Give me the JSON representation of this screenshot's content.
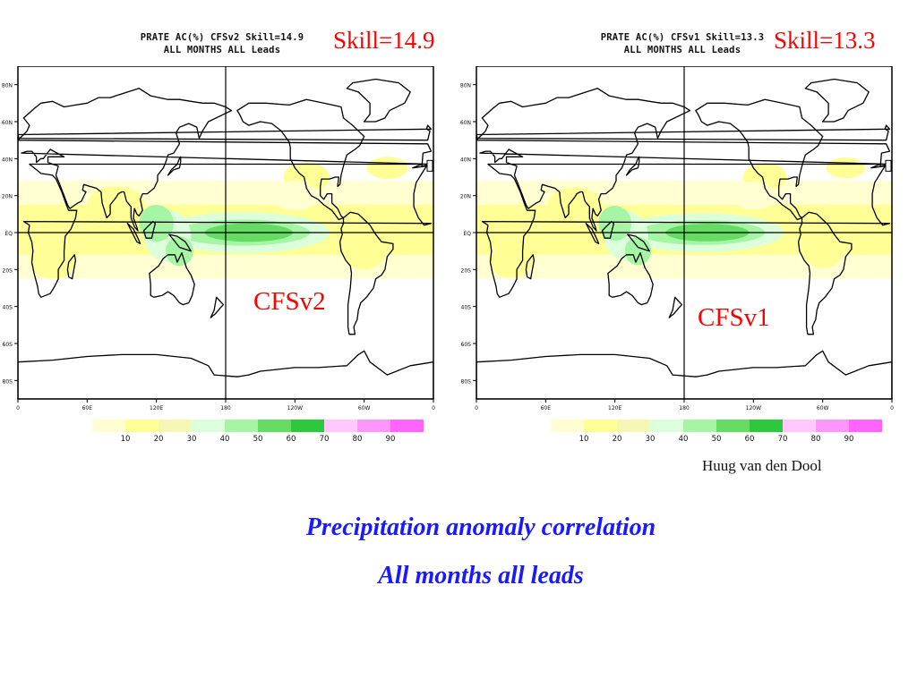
{
  "panels": [
    {
      "id": "left",
      "title_line1": "PRATE AC(%) CFSv2 Skill=14.9",
      "title_line2": "ALL MONTHS ALL Leads",
      "skill_label": "Skill=14.9",
      "model_label": "CFSv2"
    },
    {
      "id": "right",
      "title_line1": "PRATE AC(%) CFSv1 Skill=13.3",
      "title_line2": "ALL MONTHS ALL Leads",
      "skill_label": "Skill=13.3",
      "model_label": "CFSv1"
    }
  ],
  "map_axes": {
    "lat_labels": [
      "80N",
      "60N",
      "40N",
      "20N",
      "EQ",
      "20S",
      "40S",
      "60S",
      "80S"
    ],
    "lon_labels": [
      "0",
      "60E",
      "120E",
      "180",
      "120W",
      "60W",
      "0"
    ]
  },
  "colorbar": {
    "ticks": [
      "10",
      "20",
      "30",
      "40",
      "50",
      "60",
      "70",
      "80",
      "90"
    ],
    "colors": [
      "#ffffd2",
      "#ffff96",
      "#f5f7b4",
      "#dcffdc",
      "#a5f5a5",
      "#64dc64",
      "#2dc83c",
      "#ffc8ff",
      "#ff96ff",
      "#ff64ff"
    ]
  },
  "author": "Huug van den Dool",
  "caption_line1": "Precipitation anomaly correlation",
  "caption_line2": "All months all leads",
  "corner_mark": "-"
}
